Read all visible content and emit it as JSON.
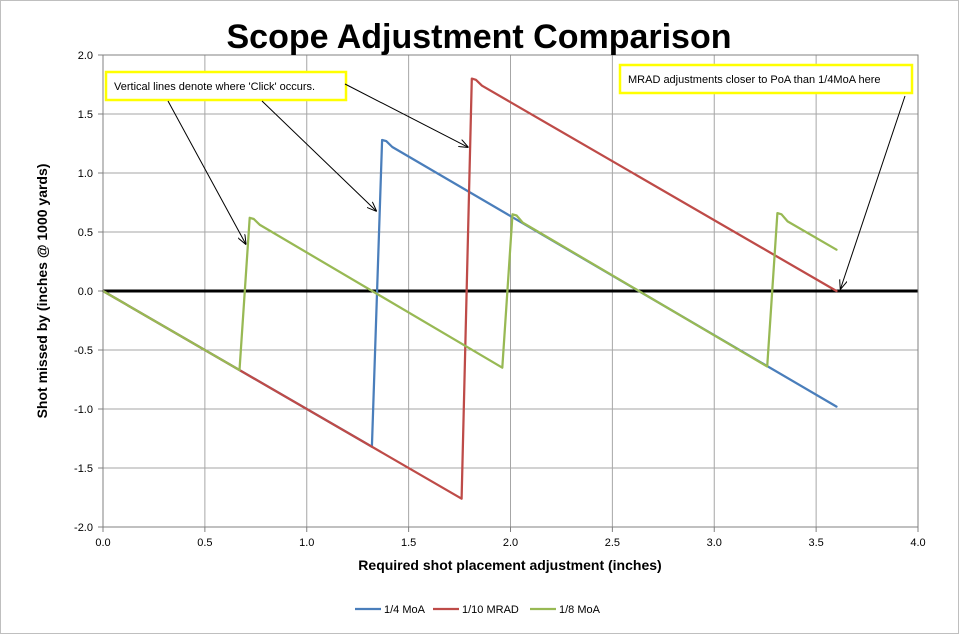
{
  "chart_data": {
    "type": "line",
    "title": "Scope Adjustment Comparison",
    "xlabel": "Required shot placement adjustment (inches)",
    "ylabel": "Shot missed by (inches @ 1000 yards)",
    "xlim": [
      0,
      4
    ],
    "ylim": [
      -2,
      2
    ],
    "xticks": [
      "0.0",
      "0.5",
      "1.0",
      "1.5",
      "2.0",
      "2.5",
      "3.0",
      "3.5",
      "4.0"
    ],
    "yticks": [
      "2.0",
      "1.5",
      "1.0",
      "0.5",
      "0.0",
      "-0.5",
      "-1.0",
      "-1.5",
      "-2.0"
    ],
    "grid": true,
    "legend_position": "bottom",
    "series": [
      {
        "name": "1/4 MoA",
        "color": "#4a7ebb",
        "points": [
          [
            0,
            0
          ],
          [
            1.3,
            -1.3
          ],
          [
            1.32,
            -1.32
          ],
          [
            1.37,
            1.28
          ],
          [
            1.39,
            1.27
          ],
          [
            1.42,
            1.22
          ],
          [
            3.6,
            -0.98
          ]
        ]
      },
      {
        "name": "1/10 MRAD",
        "color": "#be4b48",
        "points": [
          [
            0,
            0
          ],
          [
            1.74,
            -1.74
          ],
          [
            1.76,
            -1.76
          ],
          [
            1.81,
            1.8
          ],
          [
            1.83,
            1.79
          ],
          [
            1.86,
            1.74
          ],
          [
            3.6,
            0.0
          ]
        ]
      },
      {
        "name": "1/8 MoA",
        "color": "#98b954",
        "points": [
          [
            0,
            0
          ],
          [
            0.65,
            -0.65
          ],
          [
            0.67,
            -0.67
          ],
          [
            0.72,
            0.62
          ],
          [
            0.74,
            0.61
          ],
          [
            0.77,
            0.56
          ],
          [
            1.94,
            -0.63
          ],
          [
            1.96,
            -0.65
          ],
          [
            2.01,
            0.65
          ],
          [
            2.03,
            0.64
          ],
          [
            2.06,
            0.58
          ],
          [
            3.24,
            -0.62
          ],
          [
            3.26,
            -0.64
          ],
          [
            3.31,
            0.66
          ],
          [
            3.33,
            0.65
          ],
          [
            3.36,
            0.59
          ],
          [
            3.6,
            0.35
          ]
        ]
      }
    ],
    "annotations": [
      {
        "text": "Vertical lines denote where 'Click' occurs.",
        "targets": [
          [
            0.7,
            0.4
          ],
          [
            1.34,
            0.68
          ],
          [
            1.79,
            1.22
          ]
        ]
      },
      {
        "text": "MRAD adjustments closer to PoA than 1/4MoA here",
        "targets": [
          [
            3.62,
            0.02
          ]
        ]
      }
    ],
    "zero_line": {
      "y": 0,
      "color": "#000000"
    }
  }
}
